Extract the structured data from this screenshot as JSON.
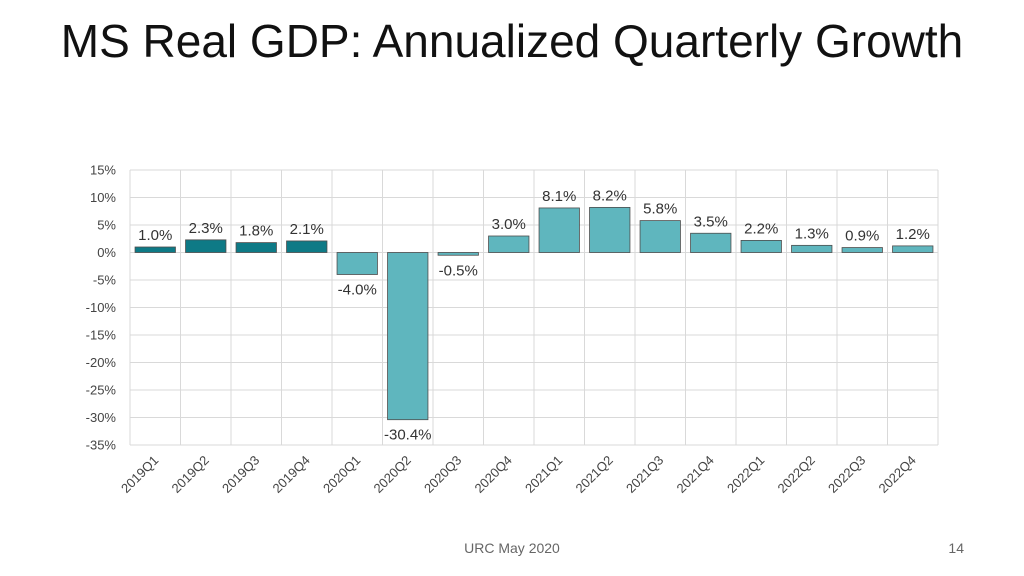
{
  "slide": {
    "title": "MS Real GDP: Annualized Quarterly Growth",
    "footer": "URC May 2020",
    "page_number": "14"
  },
  "chart_data": {
    "type": "bar",
    "title": "MS Real GDP: Annualized Quarterly Growth",
    "xlabel": "",
    "ylabel": "",
    "categories": [
      "2019Q1",
      "2019Q2",
      "2019Q3",
      "2019Q4",
      "2020Q1",
      "2020Q2",
      "2020Q3",
      "2020Q4",
      "2021Q1",
      "2021Q2",
      "2021Q3",
      "2021Q4",
      "2022Q1",
      "2022Q2",
      "2022Q3",
      "2022Q4"
    ],
    "values": [
      1.0,
      2.3,
      1.8,
      2.1,
      -4.0,
      -30.4,
      -0.5,
      3.0,
      8.1,
      8.2,
      5.8,
      3.5,
      2.2,
      1.3,
      0.9,
      1.2
    ],
    "data_labels": [
      "1.0%",
      "2.3%",
      "1.8%",
      "2.1%",
      "-4.0%",
      "-30.4%",
      "-0.5%",
      "3.0%",
      "8.1%",
      "8.2%",
      "5.8%",
      "3.5%",
      "2.2%",
      "1.3%",
      "0.9%",
      "1.2%"
    ],
    "bar_kind": [
      "actual",
      "actual",
      "actual",
      "actual",
      "forecast",
      "forecast",
      "forecast",
      "forecast",
      "forecast",
      "forecast",
      "forecast",
      "forecast",
      "forecast",
      "forecast",
      "forecast",
      "forecast"
    ],
    "ylim": [
      -35,
      15
    ],
    "yticks": [
      15,
      10,
      5,
      0,
      -5,
      -10,
      -15,
      -20,
      -25,
      -30,
      -35
    ],
    "ytick_labels": [
      "15%",
      "10%",
      "5%",
      "0%",
      "-5%",
      "-10%",
      "-15%",
      "-20%",
      "-25%",
      "-30%",
      "-35%"
    ],
    "grid": true,
    "legend": "none",
    "colors": {
      "actual": "#0e7a86",
      "forecast": "#5fb6be",
      "bar_edge": "#4d4d4d",
      "grid": "#d9d9d9"
    }
  }
}
